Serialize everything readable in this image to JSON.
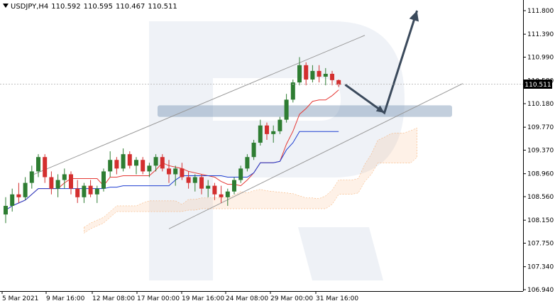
{
  "header": {
    "symbol": "USDJPY,H4",
    "open": "110.592",
    "high": "110.595",
    "low": "110.467",
    "close": "110.511"
  },
  "chart_data": {
    "type": "candlestick",
    "price_axis": {
      "ticks": [
        "111.800",
        "111.390",
        "110.990",
        "110.580",
        "110.180",
        "109.770",
        "109.370",
        "108.960",
        "108.560",
        "108.150",
        "107.750",
        "107.340",
        "106.940"
      ],
      "current_price_label": "110.511",
      "ylim": [
        106.94,
        111.8
      ]
    },
    "time_axis": {
      "labels": [
        "5 Mar 2021",
        "9 Mar 16:00",
        "12 Mar 08:00",
        "17 Mar 00:00",
        "19 Mar 16:00",
        "24 Mar 08:00",
        "29 Mar 00:00",
        "31 Mar 16:00"
      ]
    },
    "candles": [
      [
        108.25,
        108.55,
        108.1,
        108.4
      ],
      [
        108.4,
        108.7,
        108.3,
        108.6
      ],
      [
        108.6,
        108.8,
        108.45,
        108.55
      ],
      [
        108.55,
        108.9,
        108.5,
        108.8
      ],
      [
        108.8,
        109.1,
        108.7,
        109.0
      ],
      [
        109.0,
        109.3,
        108.9,
        109.25
      ],
      [
        109.25,
        109.3,
        108.8,
        108.9
      ],
      [
        108.9,
        109.0,
        108.6,
        108.7
      ],
      [
        108.7,
        108.95,
        108.55,
        108.85
      ],
      [
        108.85,
        109.05,
        108.7,
        108.95
      ],
      [
        108.95,
        109.0,
        108.6,
        108.7
      ],
      [
        108.7,
        108.85,
        108.45,
        108.55
      ],
      [
        108.55,
        108.8,
        108.45,
        108.75
      ],
      [
        108.75,
        108.85,
        108.55,
        108.6
      ],
      [
        108.6,
        108.75,
        108.45,
        108.7
      ],
      [
        108.7,
        109.05,
        108.65,
        109.0
      ],
      [
        109.0,
        109.35,
        108.9,
        109.2
      ],
      [
        109.2,
        109.25,
        108.95,
        109.05
      ],
      [
        109.05,
        109.4,
        109.0,
        109.3
      ],
      [
        109.3,
        109.35,
        109.05,
        109.1
      ],
      [
        109.1,
        109.25,
        108.95,
        109.2
      ],
      [
        109.2,
        109.25,
        108.95,
        109.0
      ],
      [
        109.0,
        109.15,
        108.9,
        109.1
      ],
      [
        109.1,
        109.3,
        109.0,
        109.25
      ],
      [
        109.25,
        109.3,
        109.0,
        109.05
      ],
      [
        109.05,
        109.2,
        108.8,
        108.95
      ],
      [
        108.95,
        109.1,
        108.75,
        109.05
      ],
      [
        109.05,
        109.15,
        108.85,
        108.9
      ],
      [
        108.9,
        109.0,
        108.7,
        108.8
      ],
      [
        108.8,
        108.95,
        108.65,
        108.9
      ],
      [
        108.9,
        108.95,
        108.6,
        108.7
      ],
      [
        108.7,
        108.85,
        108.55,
        108.75
      ],
      [
        108.75,
        108.8,
        108.5,
        108.6
      ],
      [
        108.6,
        108.75,
        108.45,
        108.55
      ],
      [
        108.55,
        108.7,
        108.4,
        108.65
      ],
      [
        108.65,
        108.9,
        108.6,
        108.85
      ],
      [
        108.85,
        109.1,
        108.8,
        109.05
      ],
      [
        109.05,
        109.3,
        109.0,
        109.25
      ],
      [
        109.25,
        109.55,
        109.2,
        109.5
      ],
      [
        109.5,
        109.9,
        109.45,
        109.8
      ],
      [
        109.8,
        109.85,
        109.55,
        109.65
      ],
      [
        109.65,
        109.8,
        109.5,
        109.7
      ],
      [
        109.7,
        109.95,
        109.65,
        109.9
      ],
      [
        109.9,
        110.35,
        109.85,
        110.25
      ],
      [
        110.25,
        110.6,
        110.2,
        110.55
      ],
      [
        110.55,
        110.99,
        110.5,
        110.85
      ],
      [
        110.85,
        110.9,
        110.5,
        110.6
      ],
      [
        110.6,
        110.85,
        110.55,
        110.75
      ],
      [
        110.75,
        110.85,
        110.55,
        110.65
      ],
      [
        110.65,
        110.8,
        110.5,
        110.7
      ],
      [
        110.7,
        110.75,
        110.5,
        110.59
      ],
      [
        110.59,
        110.6,
        110.47,
        110.51
      ]
    ],
    "projection_arrow": [
      {
        "bar": 52,
        "price": 110.51
      },
      {
        "bar": 58,
        "price": 110.02
      },
      {
        "bar": 63,
        "price": 111.8
      }
    ],
    "support_zone": {
      "from": 109.95,
      "to": 110.15
    },
    "channel": {
      "upper": [
        {
          "bar": 0,
          "price": 108.95
        },
        {
          "bar": 55,
          "price": 111.37
        }
      ],
      "lower": [
        {
          "bar": 25,
          "price": 108.0
        },
        {
          "bar": 70,
          "price": 110.53
        }
      ]
    }
  }
}
